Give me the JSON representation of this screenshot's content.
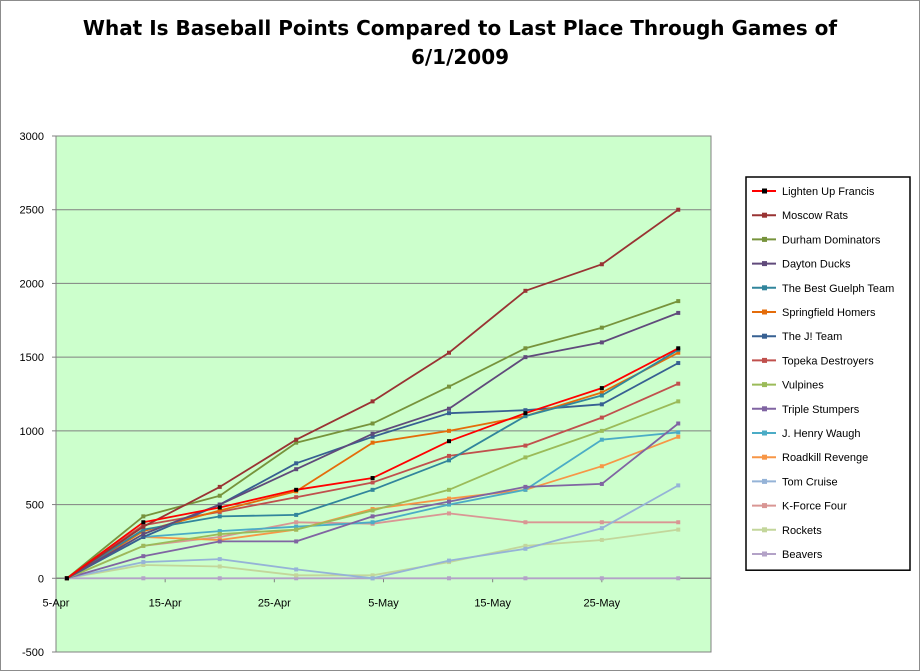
{
  "chart_data": {
    "type": "line",
    "title": "What Is Baseball Points Compared to Last Place Through Games of 6/1/2009",
    "xlabel": "",
    "ylabel": "",
    "ylim": [
      -500,
      3000
    ],
    "yticks": [
      "-500",
      "0",
      "500",
      "1000",
      "1500",
      "2000",
      "2500",
      "3000"
    ],
    "x_range": [
      "2009-04-05",
      "2009-06-04"
    ],
    "x_tick_labels": [
      "5-Apr",
      "15-Apr",
      "25-Apr",
      "5-May",
      "15-May",
      "25-May"
    ],
    "x_tick_dates": [
      "2009-04-05",
      "2009-04-15",
      "2009-04-25",
      "2009-05-05",
      "2009-05-15",
      "2009-05-25"
    ],
    "x_points_dates": [
      "2009-04-06",
      "2009-04-13",
      "2009-04-20",
      "2009-04-27",
      "2009-05-04",
      "2009-05-11",
      "2009-05-18",
      "2009-05-25",
      "2009-06-01"
    ],
    "grid": {
      "horizontal": true,
      "vertical": false
    },
    "plot_background": "#ccffcc",
    "legend_position": "right",
    "series": [
      {
        "name": "Lighten Up Francis",
        "color": "#ff0000",
        "marker_color": "#000000",
        "values": [
          0,
          380,
          480,
          600,
          680,
          930,
          1120,
          1290,
          1560
        ]
      },
      {
        "name": "Moscow Rats",
        "color": "#993333",
        "values": [
          0,
          350,
          620,
          940,
          1200,
          1530,
          1950,
          2130,
          2500
        ]
      },
      {
        "name": "Durham Dominators",
        "color": "#77933c",
        "values": [
          0,
          420,
          560,
          920,
          1050,
          1300,
          1560,
          1700,
          1880
        ]
      },
      {
        "name": "Dayton Ducks",
        "color": "#604a7b",
        "values": [
          0,
          300,
          500,
          740,
          980,
          1150,
          1500,
          1600,
          1800
        ]
      },
      {
        "name": "The Best Guelph Team",
        "color": "#31859c",
        "values": [
          0,
          330,
          420,
          430,
          600,
          800,
          1100,
          1240,
          1550
        ]
      },
      {
        "name": "Springfield Homers",
        "color": "#e46c0a",
        "values": [
          0,
          320,
          460,
          590,
          920,
          1000,
          1100,
          1260,
          1530
        ]
      },
      {
        "name": "The J! Team",
        "color": "#376092",
        "values": [
          0,
          280,
          500,
          780,
          960,
          1120,
          1140,
          1180,
          1460
        ]
      },
      {
        "name": "Topeka Destroyers",
        "color": "#c0504d",
        "values": [
          0,
          360,
          450,
          550,
          650,
          830,
          900,
          1090,
          1320
        ]
      },
      {
        "name": "Vulpines",
        "color": "#9bbb59",
        "values": [
          0,
          220,
          300,
          330,
          460,
          600,
          820,
          1000,
          1200
        ]
      },
      {
        "name": "Triple Stumpers",
        "color": "#8064a2",
        "values": [
          0,
          150,
          250,
          250,
          420,
          520,
          620,
          640,
          1050
        ]
      },
      {
        "name": "J. Henry Waugh",
        "color": "#4bacc6",
        "values": [
          0,
          280,
          320,
          350,
          380,
          500,
          600,
          940,
          990
        ]
      },
      {
        "name": "Roadkill Revenge",
        "color": "#f79646",
        "values": [
          0,
          280,
          260,
          330,
          470,
          540,
          600,
          760,
          960
        ]
      },
      {
        "name": "Tom Cruise",
        "color": "#95b3d7",
        "values": [
          0,
          110,
          130,
          60,
          0,
          120,
          200,
          340,
          630
        ]
      },
      {
        "name": "K-Force Four",
        "color": "#d99694",
        "values": [
          0,
          220,
          280,
          380,
          370,
          440,
          380,
          380,
          380
        ]
      },
      {
        "name": "Rockets",
        "color": "#c3d69b",
        "values": [
          0,
          90,
          80,
          20,
          20,
          110,
          220,
          260,
          330
        ]
      },
      {
        "name": "Beavers",
        "color": "#b3a2c7",
        "values": [
          0,
          0,
          0,
          0,
          0,
          0,
          0,
          0,
          0
        ]
      }
    ]
  }
}
